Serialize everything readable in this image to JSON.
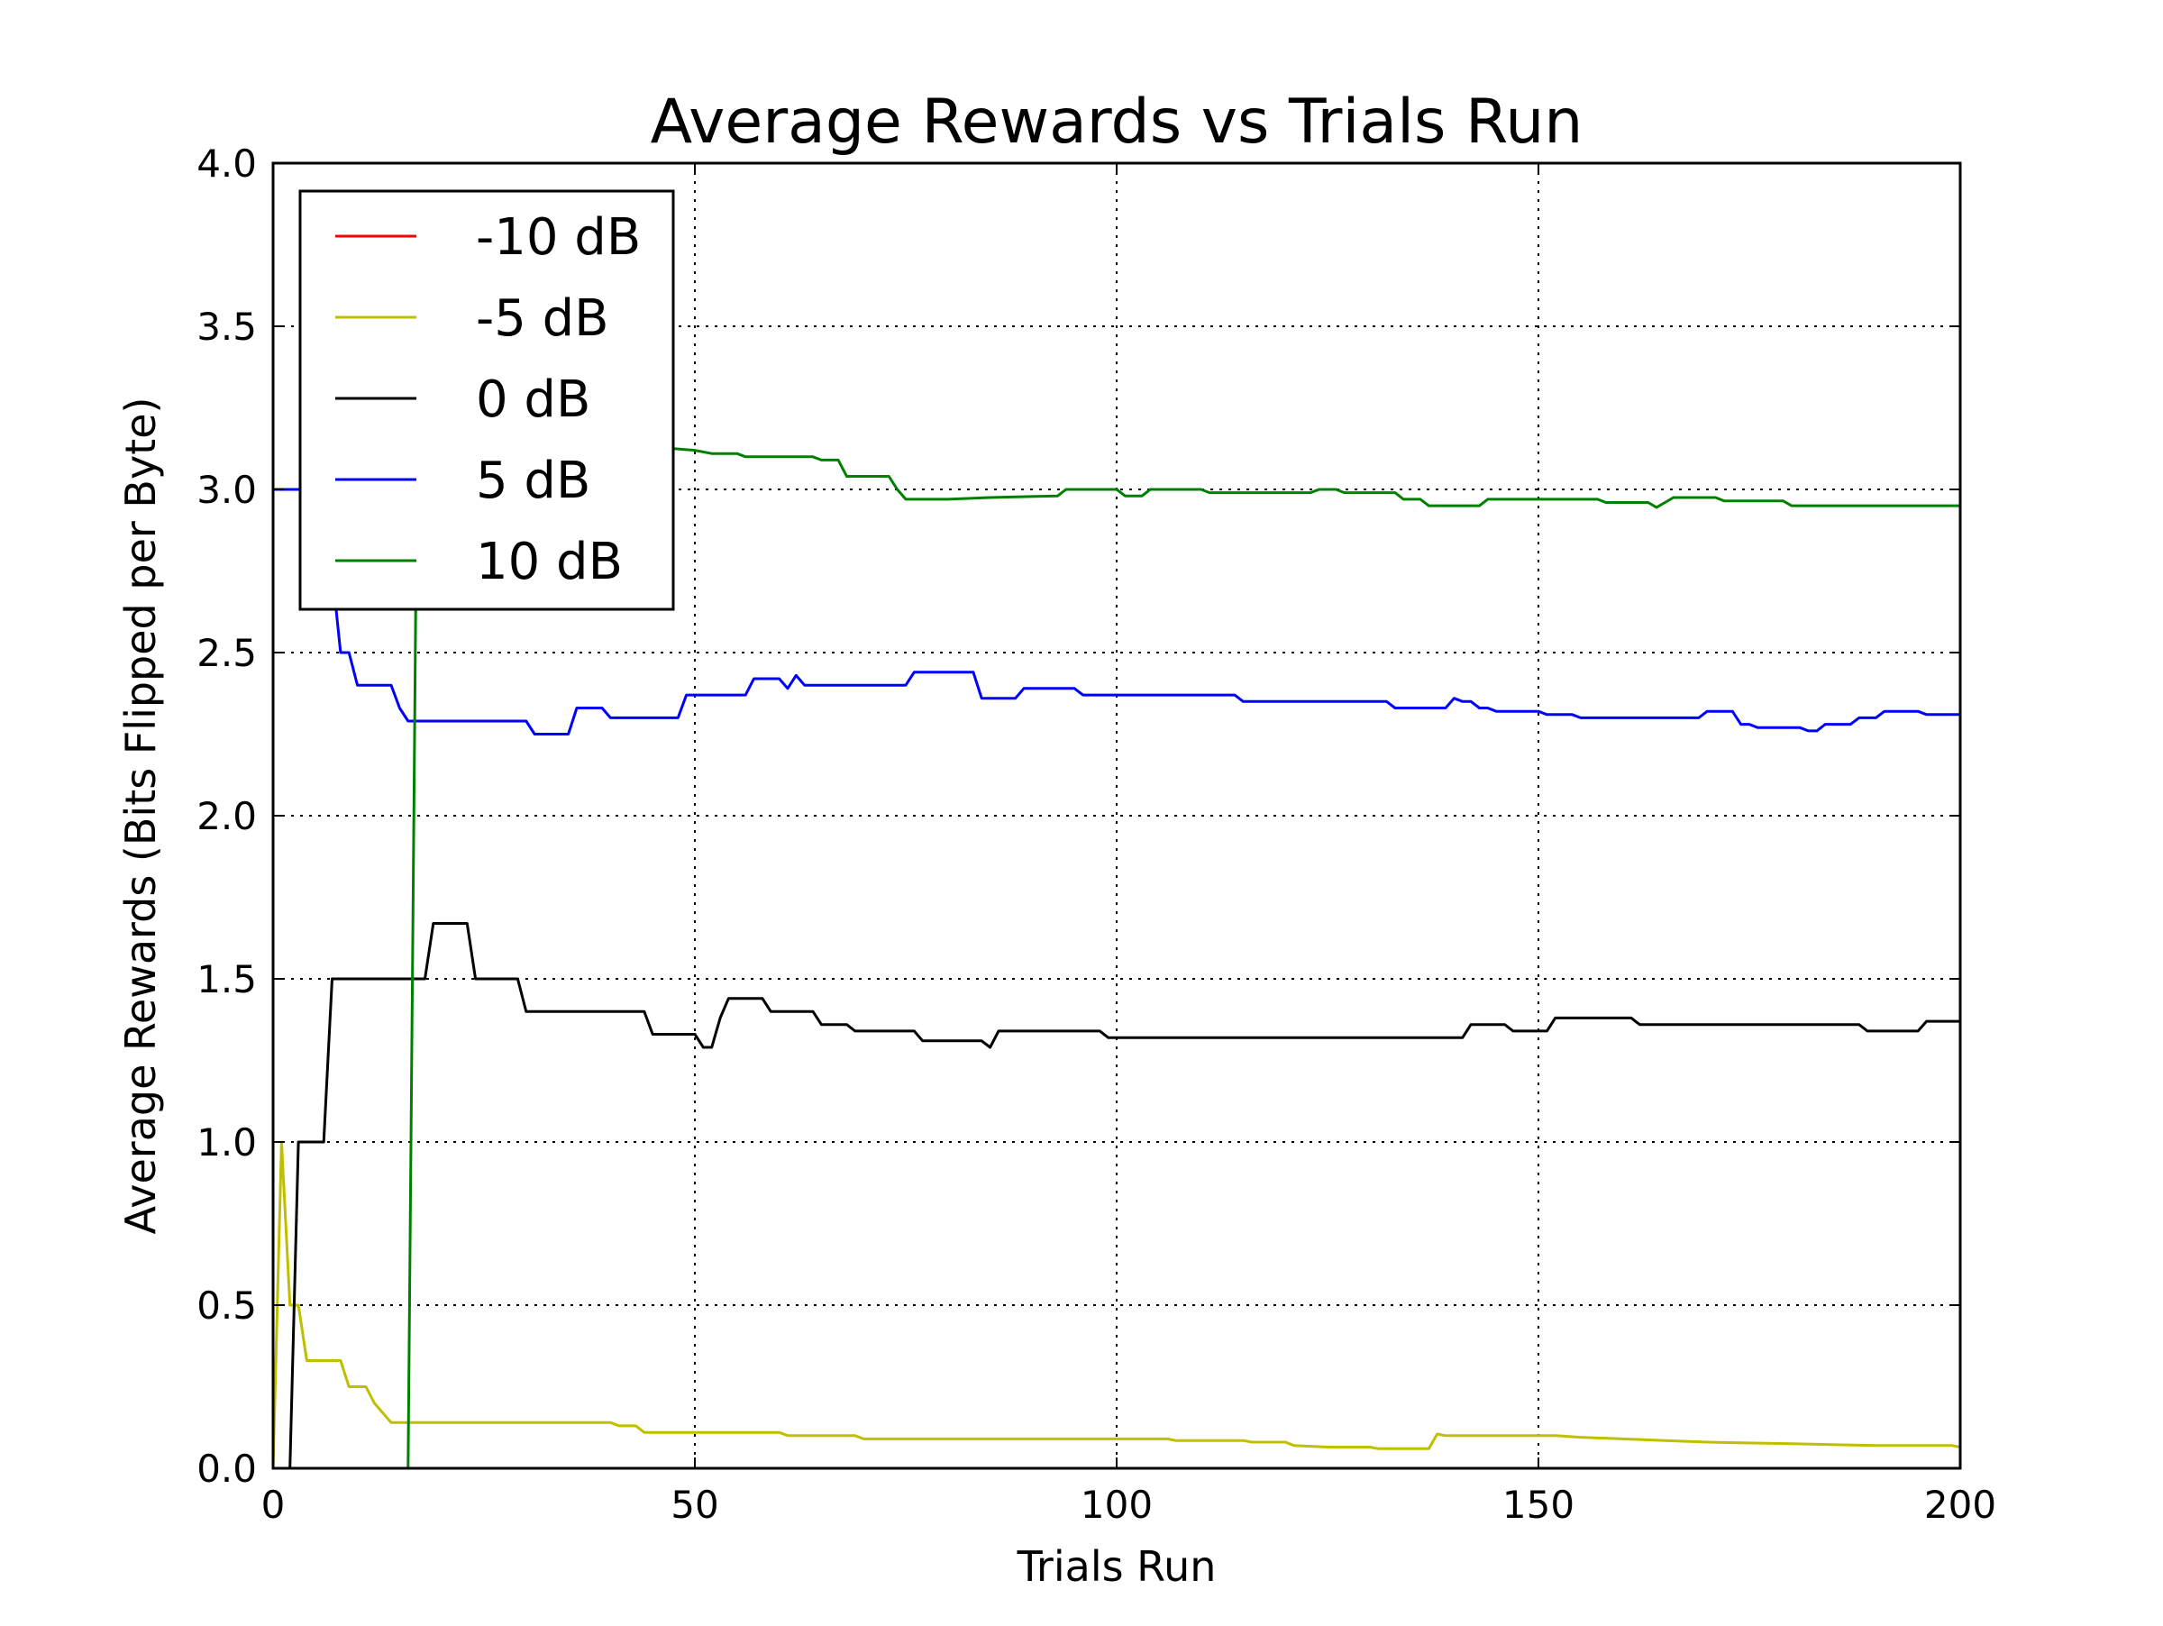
{
  "chart_data": {
    "type": "line",
    "title": "Average Rewards vs Trials Run",
    "xlabel": "Trials Run",
    "ylabel": "Average Rewards (Bits Flipped per Byte)",
    "xlim": [
      0,
      200
    ],
    "ylim": [
      0,
      4.0
    ],
    "x_ticks": [
      0,
      50,
      100,
      150,
      200
    ],
    "x_tick_labels": [
      "0",
      "50",
      "100",
      "150",
      "200"
    ],
    "y_ticks": [
      0,
      0.5,
      1.0,
      1.5,
      2.0,
      2.5,
      3.0,
      3.5,
      4.0
    ],
    "y_tick_labels": [
      "0.0",
      "0.5",
      "1.0",
      "1.5",
      "2.0",
      "2.5",
      "3.0",
      "3.5",
      "4.0"
    ],
    "grid": true,
    "legend_position": "top-left",
    "series": [
      {
        "name": "-10 dB",
        "color": "#ff0000",
        "points": []
      },
      {
        "name": "-5 dB",
        "color": "#bfbf00",
        "points": [
          [
            0,
            0
          ],
          [
            1,
            1.0
          ],
          [
            2,
            0.5
          ],
          [
            3,
            0.5
          ],
          [
            4,
            0.33
          ],
          [
            5,
            0.33
          ],
          [
            6,
            0.33
          ],
          [
            7,
            0.33
          ],
          [
            8,
            0.33
          ],
          [
            9,
            0.25
          ],
          [
            10,
            0.25
          ],
          [
            11,
            0.25
          ],
          [
            12,
            0.2
          ],
          [
            13,
            0.17
          ],
          [
            14,
            0.14
          ],
          [
            15,
            0.14
          ],
          [
            20,
            0.14
          ],
          [
            30,
            0.14
          ],
          [
            40,
            0.14
          ],
          [
            41,
            0.13
          ],
          [
            43,
            0.13
          ],
          [
            44,
            0.11
          ],
          [
            50,
            0.11
          ],
          [
            60,
            0.11
          ],
          [
            61,
            0.1
          ],
          [
            69,
            0.1
          ],
          [
            70,
            0.09
          ],
          [
            80,
            0.09
          ],
          [
            90,
            0.09
          ],
          [
            100,
            0.09
          ],
          [
            106,
            0.09
          ],
          [
            107,
            0.085
          ],
          [
            115,
            0.085
          ],
          [
            116,
            0.08
          ],
          [
            120,
            0.08
          ],
          [
            121,
            0.07
          ],
          [
            125,
            0.065
          ],
          [
            130,
            0.065
          ],
          [
            131,
            0.06
          ],
          [
            137,
            0.06
          ],
          [
            138,
            0.105
          ],
          [
            139,
            0.1
          ],
          [
            145,
            0.1
          ],
          [
            152,
            0.1
          ],
          [
            155,
            0.095
          ],
          [
            160,
            0.09
          ],
          [
            165,
            0.085
          ],
          [
            170,
            0.08
          ],
          [
            180,
            0.075
          ],
          [
            190,
            0.07
          ],
          [
            199,
            0.07
          ],
          [
            200,
            0.065
          ]
        ]
      },
      {
        "name": "0 dB",
        "color": "#000000",
        "points": [
          [
            0,
            0
          ],
          [
            2,
            0
          ],
          [
            3,
            1.0
          ],
          [
            6,
            1.0
          ],
          [
            7,
            1.5
          ],
          [
            18,
            1.5
          ],
          [
            19,
            1.67
          ],
          [
            23,
            1.67
          ],
          [
            24,
            1.5
          ],
          [
            29,
            1.5
          ],
          [
            30,
            1.4
          ],
          [
            44,
            1.4
          ],
          [
            45,
            1.33
          ],
          [
            50,
            1.33
          ],
          [
            51,
            1.29
          ],
          [
            52,
            1.29
          ],
          [
            53,
            1.38
          ],
          [
            54,
            1.44
          ],
          [
            58,
            1.44
          ],
          [
            59,
            1.4
          ],
          [
            64,
            1.4
          ],
          [
            65,
            1.36
          ],
          [
            68,
            1.36
          ],
          [
            69,
            1.34
          ],
          [
            76,
            1.34
          ],
          [
            77,
            1.31
          ],
          [
            84,
            1.31
          ],
          [
            85,
            1.29
          ],
          [
            86,
            1.34
          ],
          [
            98,
            1.34
          ],
          [
            99,
            1.32
          ],
          [
            141,
            1.32
          ],
          [
            142,
            1.36
          ],
          [
            146,
            1.36
          ],
          [
            147,
            1.34
          ],
          [
            151,
            1.34
          ],
          [
            152,
            1.38
          ],
          [
            161,
            1.38
          ],
          [
            162,
            1.36
          ],
          [
            188,
            1.36
          ],
          [
            189,
            1.34
          ],
          [
            195,
            1.34
          ],
          [
            196,
            1.37
          ],
          [
            200,
            1.37
          ]
        ]
      },
      {
        "name": "5 dB",
        "color": "#0000ff",
        "points": [
          [
            0,
            3.0
          ],
          [
            3,
            3.0
          ],
          [
            4,
            3.0
          ],
          [
            5,
            3.0
          ],
          [
            6,
            2.86
          ],
          [
            7,
            2.75
          ],
          [
            8,
            2.5
          ],
          [
            9,
            2.5
          ],
          [
            10,
            2.4
          ],
          [
            14,
            2.4
          ],
          [
            15,
            2.33
          ],
          [
            16,
            2.29
          ],
          [
            30,
            2.29
          ],
          [
            31,
            2.25
          ],
          [
            35,
            2.25
          ],
          [
            36,
            2.33
          ],
          [
            39,
            2.33
          ],
          [
            40,
            2.3
          ],
          [
            48,
            2.3
          ],
          [
            49,
            2.37
          ],
          [
            56,
            2.37
          ],
          [
            57,
            2.42
          ],
          [
            60,
            2.42
          ],
          [
            61,
            2.39
          ],
          [
            62,
            2.43
          ],
          [
            63,
            2.4
          ],
          [
            75,
            2.4
          ],
          [
            76,
            2.44
          ],
          [
            83,
            2.44
          ],
          [
            84,
            2.36
          ],
          [
            88,
            2.36
          ],
          [
            89,
            2.39
          ],
          [
            95,
            2.39
          ],
          [
            96,
            2.37
          ],
          [
            114,
            2.37
          ],
          [
            115,
            2.35
          ],
          [
            132,
            2.35
          ],
          [
            133,
            2.33
          ],
          [
            139,
            2.33
          ],
          [
            140,
            2.36
          ],
          [
            141,
            2.35
          ],
          [
            142,
            2.35
          ],
          [
            143,
            2.33
          ],
          [
            144,
            2.33
          ],
          [
            145,
            2.32
          ],
          [
            150,
            2.32
          ],
          [
            151,
            2.31
          ],
          [
            154,
            2.31
          ],
          [
            155,
            2.3
          ],
          [
            169,
            2.3
          ],
          [
            170,
            2.32
          ],
          [
            173,
            2.32
          ],
          [
            174,
            2.28
          ],
          [
            175,
            2.28
          ],
          [
            176,
            2.27
          ],
          [
            181,
            2.27
          ],
          [
            182,
            2.26
          ],
          [
            183,
            2.26
          ],
          [
            184,
            2.28
          ],
          [
            187,
            2.28
          ],
          [
            188,
            2.3
          ],
          [
            190,
            2.3
          ],
          [
            191,
            2.32
          ],
          [
            195,
            2.32
          ],
          [
            196,
            2.31
          ],
          [
            200,
            2.31
          ]
        ]
      },
      {
        "name": "10 dB",
        "color": "#008000",
        "points": [
          [
            16,
            0
          ],
          [
            17,
            2.9
          ],
          [
            18,
            3.05
          ],
          [
            20,
            3.1
          ],
          [
            25,
            3.1
          ],
          [
            30,
            3.12
          ],
          [
            40,
            3.13
          ],
          [
            45,
            3.13
          ],
          [
            50,
            3.12
          ],
          [
            52,
            3.11
          ],
          [
            55,
            3.11
          ],
          [
            56,
            3.1
          ],
          [
            60,
            3.1
          ],
          [
            64,
            3.1
          ],
          [
            65,
            3.09
          ],
          [
            67,
            3.09
          ],
          [
            68,
            3.04
          ],
          [
            73,
            3.04
          ],
          [
            74,
            3.0
          ],
          [
            75,
            2.97
          ],
          [
            80,
            2.97
          ],
          [
            85,
            2.975
          ],
          [
            93,
            2.98
          ],
          [
            94,
            3.0
          ],
          [
            100,
            3.0
          ],
          [
            101,
            2.98
          ],
          [
            103,
            2.98
          ],
          [
            104,
            3.0
          ],
          [
            110,
            3.0
          ],
          [
            111,
            2.99
          ],
          [
            123,
            2.99
          ],
          [
            124,
            3.0
          ],
          [
            126,
            3.0
          ],
          [
            127,
            2.99
          ],
          [
            133,
            2.99
          ],
          [
            134,
            2.97
          ],
          [
            136,
            2.97
          ],
          [
            137,
            2.95
          ],
          [
            143,
            2.95
          ],
          [
            144,
            2.97
          ],
          [
            157,
            2.97
          ],
          [
            158,
            2.96
          ],
          [
            163,
            2.96
          ],
          [
            164,
            2.945
          ],
          [
            165,
            2.96
          ],
          [
            166,
            2.975
          ],
          [
            171,
            2.975
          ],
          [
            172,
            2.965
          ],
          [
            179,
            2.965
          ],
          [
            180,
            2.95
          ],
          [
            200,
            2.95
          ]
        ]
      }
    ]
  }
}
